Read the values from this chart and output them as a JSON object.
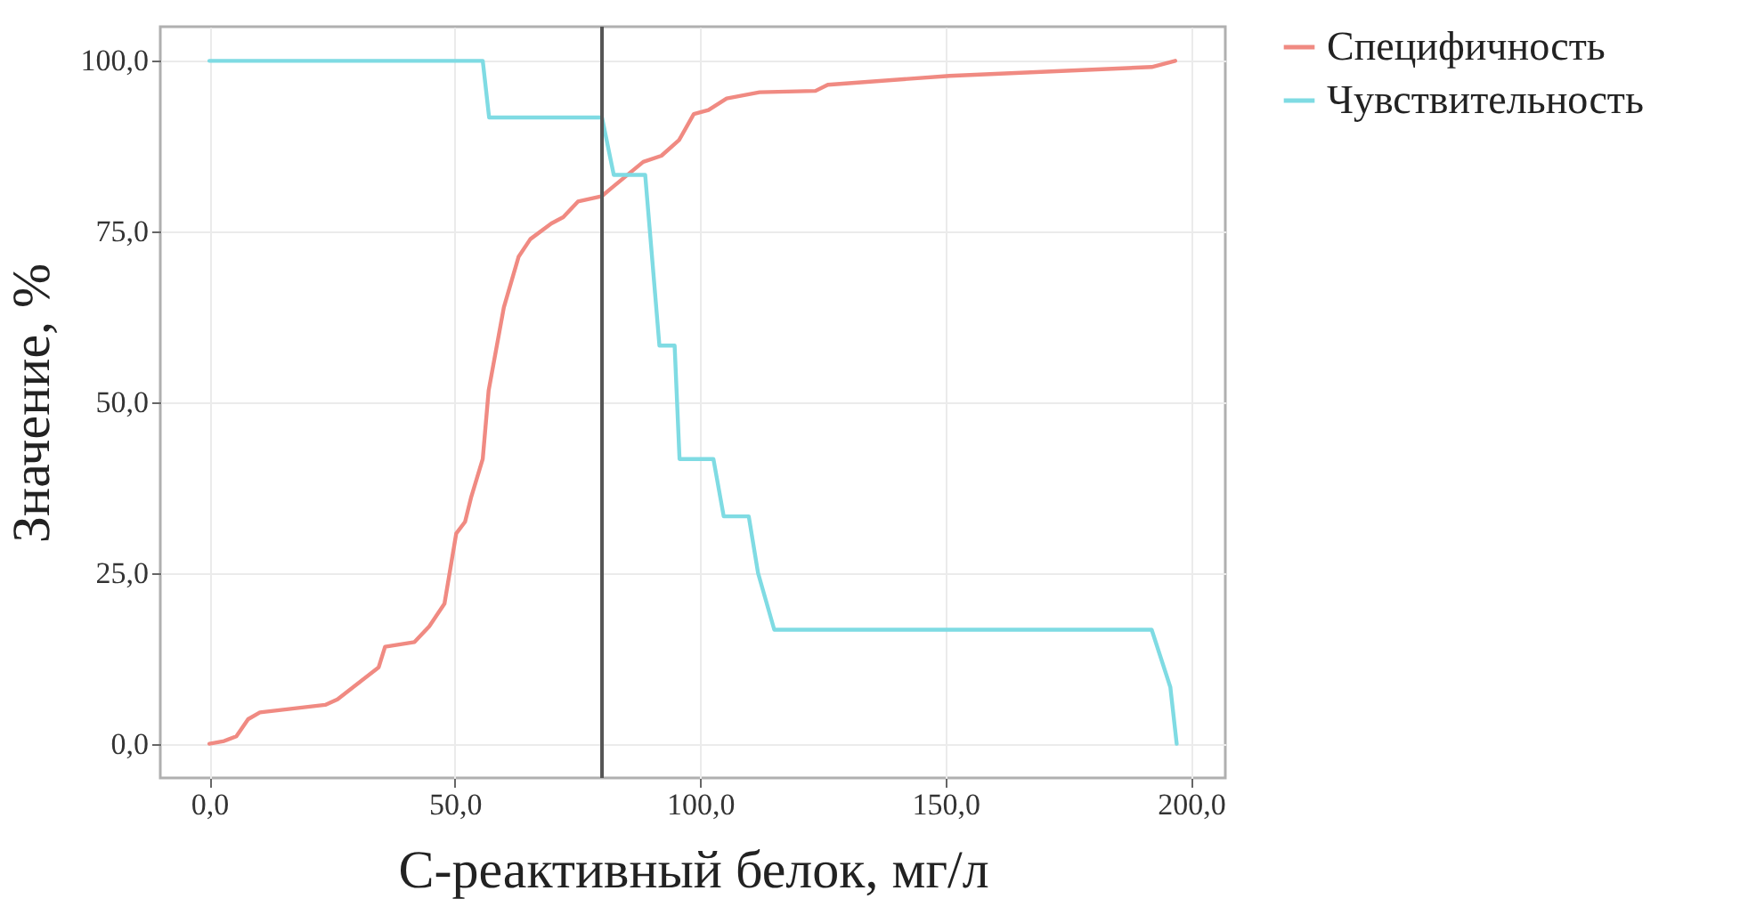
{
  "chart_data": {
    "type": "line",
    "xlabel": "С-реактивный белок, мг/л",
    "ylabel": "Значение, %",
    "xlim": [
      -10,
      207
    ],
    "ylim": [
      -5,
      105
    ],
    "xticks": [
      {
        "value": 0,
        "label": "0,0"
      },
      {
        "value": 50,
        "label": "50,0"
      },
      {
        "value": 100,
        "label": "100,0"
      },
      {
        "value": 150,
        "label": "150,0"
      },
      {
        "value": 200,
        "label": "200,0"
      }
    ],
    "yticks": [
      {
        "value": 0,
        "label": "0,0"
      },
      {
        "value": 25,
        "label": "25,0"
      },
      {
        "value": 50,
        "label": "50,0"
      },
      {
        "value": 75,
        "label": "75,0"
      },
      {
        "value": 100,
        "label": "100,0"
      }
    ],
    "grid": true,
    "legend": "right",
    "series": [
      {
        "name": "Специфичность",
        "color": "#f08a82",
        "x": [
          0,
          3,
          5.5,
          7.9,
          10.3,
          23.6,
          26.1,
          34.5,
          35.8,
          41.8,
          44.8,
          47.9,
          50.3,
          52.1,
          53.3,
          55.7,
          56.9,
          60,
          63,
          65.4,
          69.7,
          72.1,
          75.1,
          80,
          81.8,
          88.4,
          92.1,
          95.7,
          98.7,
          101.7,
          105.4,
          112.1,
          123.5,
          126,
          150.8,
          192,
          196.8
        ],
        "values": [
          0,
          0.4,
          1.1,
          3.6,
          4.6,
          5.7,
          6.5,
          11.2,
          14.2,
          14.9,
          17.2,
          20.5,
          30.8,
          32.5,
          36,
          41.7,
          51.7,
          63.9,
          71.3,
          73.9,
          76.2,
          77.1,
          79.4,
          80.2,
          81.3,
          85.2,
          86.1,
          88.4,
          92.2,
          92.8,
          94.5,
          95.4,
          95.6,
          96.5,
          97.8,
          99.1,
          100
        ]
      },
      {
        "name": "Чувствительность",
        "color": "#7fdbe3",
        "x": [
          0,
          55.7,
          57,
          80,
          82.4,
          88.8,
          91.7,
          94.8,
          95.8,
          102.7,
          104.8,
          109.9,
          111.8,
          115.1,
          192,
          195.8,
          197.1
        ],
        "values": [
          100,
          100,
          91.7,
          91.7,
          83.3,
          83.3,
          58.3,
          58.3,
          41.7,
          41.7,
          33.3,
          33.3,
          25,
          16.7,
          16.7,
          8.3,
          0
        ]
      }
    ],
    "ref_lines": [
      {
        "axis": "x",
        "value": 80,
        "color": "#555555"
      }
    ]
  }
}
